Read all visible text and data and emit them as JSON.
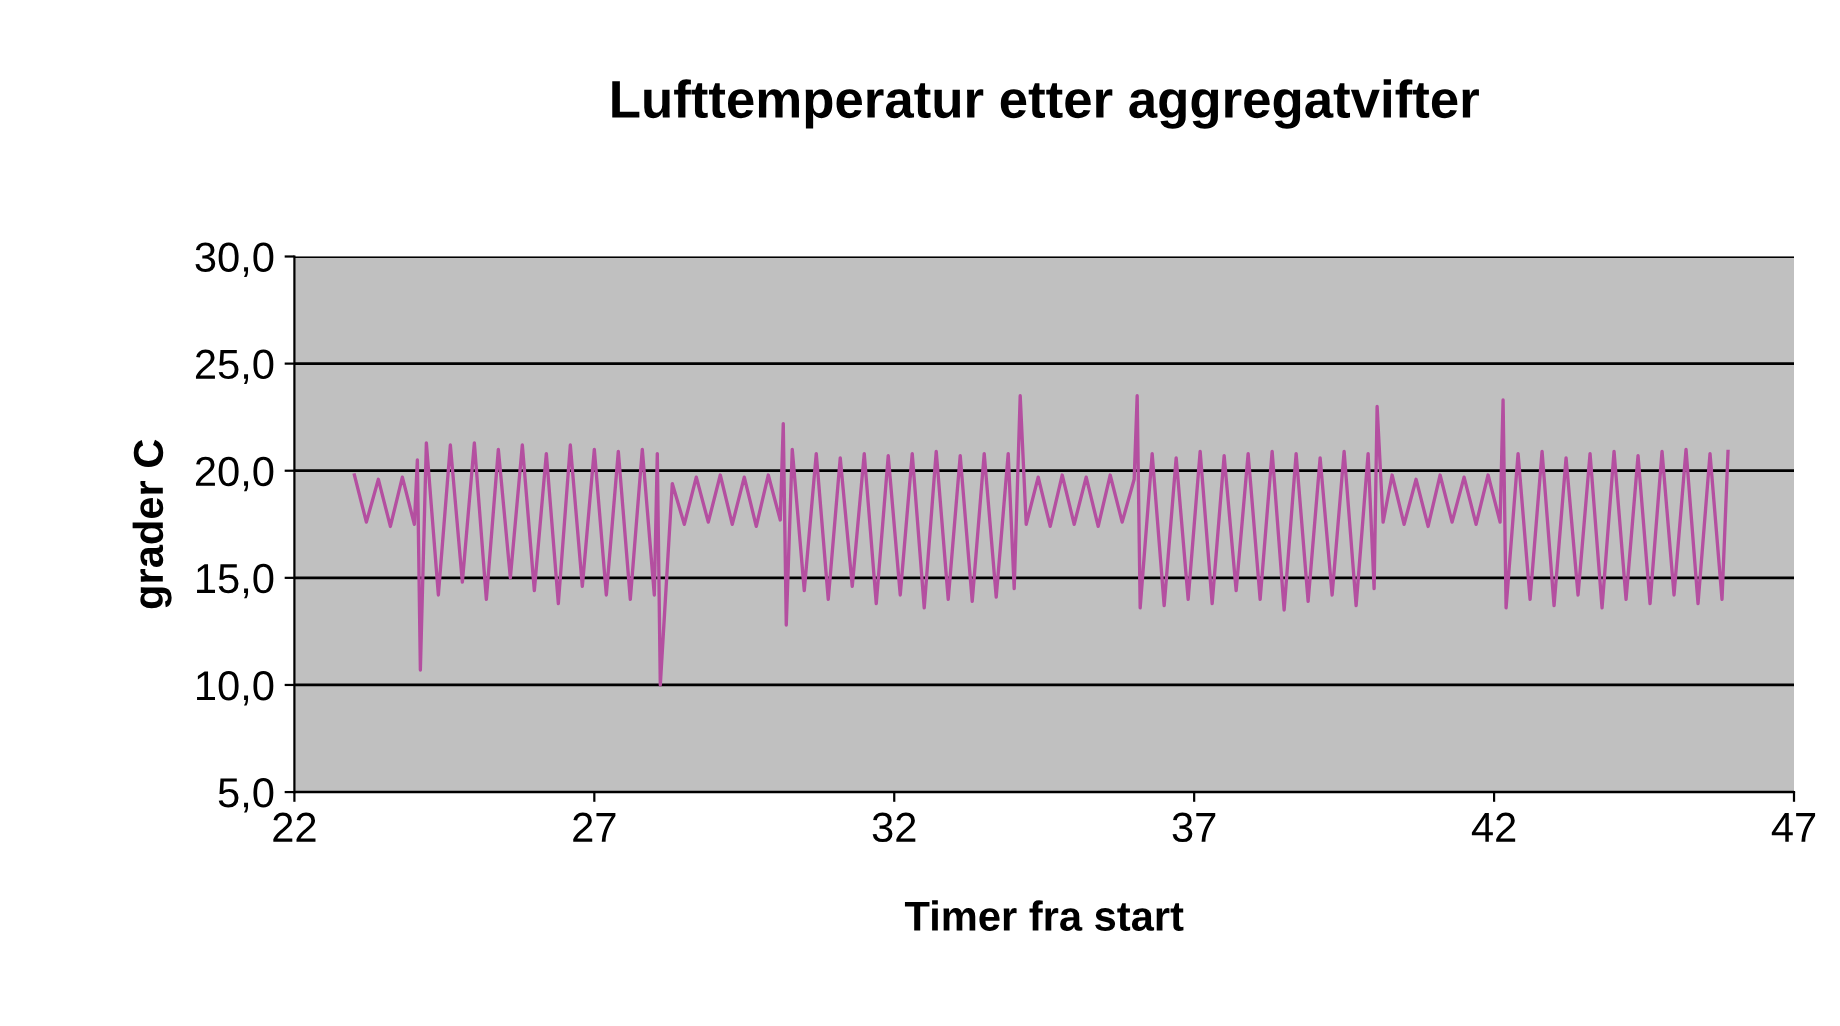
{
  "chart_data": {
    "type": "line",
    "title": "Lufttemperatur etter aggregatvifter",
    "xlabel": "Timer fra start",
    "ylabel": "grader C",
    "xlim": [
      22,
      47
    ],
    "xticks": [
      22,
      27,
      32,
      37,
      42,
      47
    ],
    "ylim": [
      5,
      30
    ],
    "yticks": [
      {
        "value": 5,
        "label": "5,0"
      },
      {
        "value": 10,
        "label": "10,0"
      },
      {
        "value": 15,
        "label": "15,0"
      },
      {
        "value": 20,
        "label": "20,0"
      },
      {
        "value": 25,
        "label": "25,0"
      },
      {
        "value": 30,
        "label": "30,0"
      }
    ],
    "grid": "y",
    "legend": false,
    "marker": "none",
    "line_style": "solid",
    "series": [
      {
        "color": "#b44fa0",
        "x": [
          23.0,
          23.2,
          23.4,
          23.6,
          23.8,
          24.0,
          24.05,
          24.1,
          24.2,
          24.4,
          24.6,
          24.8,
          25.0,
          25.2,
          25.4,
          25.6,
          25.8,
          26.0,
          26.2,
          26.4,
          26.6,
          26.8,
          27.0,
          27.2,
          27.4,
          27.6,
          27.8,
          28.0,
          28.05,
          28.1,
          28.3,
          28.5,
          28.7,
          28.9,
          29.1,
          29.3,
          29.5,
          29.7,
          29.9,
          30.1,
          30.15,
          30.2,
          30.3,
          30.5,
          30.7,
          30.9,
          31.1,
          31.3,
          31.5,
          31.7,
          31.9,
          32.1,
          32.3,
          32.5,
          32.7,
          32.9,
          33.1,
          33.3,
          33.5,
          33.7,
          33.9,
          34.0,
          34.1,
          34.2,
          34.4,
          34.6,
          34.8,
          35.0,
          35.2,
          35.4,
          35.6,
          35.8,
          36.0,
          36.05,
          36.1,
          36.3,
          36.5,
          36.7,
          36.9,
          37.1,
          37.3,
          37.5,
          37.7,
          37.9,
          38.1,
          38.3,
          38.5,
          38.7,
          38.9,
          39.1,
          39.3,
          39.5,
          39.7,
          39.9,
          40.0,
          40.05,
          40.15,
          40.3,
          40.5,
          40.7,
          40.9,
          41.1,
          41.3,
          41.5,
          41.7,
          41.9,
          42.1,
          42.15,
          42.2,
          42.4,
          42.6,
          42.8,
          43.0,
          43.2,
          43.4,
          43.6,
          43.8,
          44.0,
          44.2,
          44.4,
          44.6,
          44.8,
          45.0,
          45.2,
          45.4,
          45.6,
          45.8,
          45.9
        ],
        "values": [
          19.8,
          17.6,
          19.6,
          17.4,
          19.7,
          17.5,
          20.5,
          10.7,
          21.3,
          14.2,
          21.2,
          14.8,
          21.3,
          14.0,
          21.0,
          15.0,
          21.2,
          14.4,
          20.8,
          13.8,
          21.2,
          14.6,
          21.0,
          14.2,
          20.9,
          14.0,
          21.0,
          14.2,
          20.8,
          10.0,
          19.4,
          17.5,
          19.7,
          17.6,
          19.8,
          17.5,
          19.7,
          17.4,
          19.8,
          17.7,
          22.2,
          12.8,
          21.0,
          14.4,
          20.8,
          14.0,
          20.6,
          14.6,
          20.8,
          13.8,
          20.7,
          14.2,
          20.8,
          13.6,
          20.9,
          14.0,
          20.7,
          13.9,
          20.8,
          14.1,
          20.8,
          14.5,
          23.5,
          17.5,
          19.7,
          17.4,
          19.8,
          17.5,
          19.7,
          17.4,
          19.8,
          17.6,
          19.6,
          23.5,
          13.6,
          20.8,
          13.7,
          20.6,
          14.0,
          20.9,
          13.8,
          20.7,
          14.4,
          20.8,
          14.0,
          20.9,
          13.5,
          20.8,
          13.9,
          20.6,
          14.2,
          20.9,
          13.7,
          20.8,
          14.5,
          23.0,
          17.6,
          19.8,
          17.5,
          19.6,
          17.4,
          19.8,
          17.6,
          19.7,
          17.5,
          19.8,
          17.6,
          23.3,
          13.6,
          20.8,
          14.0,
          20.9,
          13.7,
          20.6,
          14.2,
          20.8,
          13.6,
          20.9,
          14.0,
          20.7,
          13.8,
          20.9,
          14.2,
          21.0,
          13.8,
          20.8,
          14.0,
          20.9
        ]
      }
    ]
  }
}
